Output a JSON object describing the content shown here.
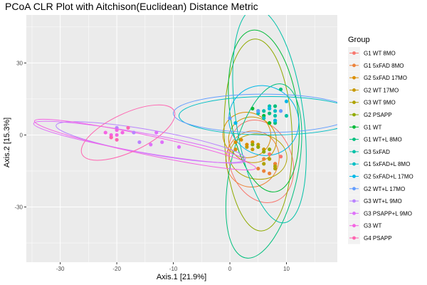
{
  "chart_data": {
    "type": "scatter",
    "title": "PCoA CLR Plot with Aitchison(Euclidean) Distance Metric",
    "xlabel": "Axis.1   [21.9%]",
    "ylabel": "Axis.2   [15.3%]",
    "xlim": [
      -36,
      19
    ],
    "ylim": [
      -53,
      50
    ],
    "x_ticks": [
      -30,
      -20,
      -10,
      0,
      10
    ],
    "x_tick_labels": [
      "-30",
      "-20",
      "-10",
      "0",
      "10"
    ],
    "y_ticks": [
      -30,
      0,
      30
    ],
    "y_tick_labels": [
      "-30",
      "0",
      "30"
    ],
    "grid": true,
    "panel_background": "#ebebeb",
    "legend_title": "Group",
    "legend_position": "right",
    "series": [
      {
        "name": "G1 WT 8MO",
        "color": "#F8766D",
        "points": [
          [
            9,
            -9
          ],
          [
            8,
            -12
          ],
          [
            7,
            -8
          ]
        ],
        "ellipse": {
          "cx": 5.5,
          "cy": -11,
          "rx": 7.5,
          "ry": 13,
          "angle": -70
        }
      },
      {
        "name": "G1 5xFAD 8MO",
        "color": "#EC8239",
        "points": [
          [
            6,
            -15
          ],
          [
            7,
            -16
          ],
          [
            8,
            -12
          ],
          [
            5,
            -14
          ],
          [
            6,
            -10
          ]
        ],
        "ellipse": {
          "cx": 4,
          "cy": -10,
          "rx": 5,
          "ry": 11,
          "angle": 70
        }
      },
      {
        "name": "G2 5xFAD 17MO",
        "color": "#DB8E00",
        "points": [
          [
            1,
            -3
          ],
          [
            2,
            -2
          ],
          [
            3,
            -4
          ],
          [
            4,
            -3
          ],
          [
            5,
            -5
          ],
          [
            1,
            -6
          ]
        ],
        "ellipse": {
          "cx": 3,
          "cy": 0,
          "rx": 4,
          "ry": 10,
          "angle": 80
        }
      },
      {
        "name": "G2 WT 17MO",
        "color": "#C79800",
        "points": [
          [
            3,
            -5
          ],
          [
            4,
            -6
          ],
          [
            5,
            -4
          ],
          [
            6,
            -6
          ]
        ],
        "ellipse": {
          "cx": 4,
          "cy": -2,
          "rx": 4,
          "ry": 10,
          "angle": 70
        }
      },
      {
        "name": "G3 WT 9MO",
        "color": "#AEA200",
        "points": [
          [
            6,
            -12
          ],
          [
            8,
            -14
          ],
          [
            7,
            -10
          ],
          [
            8,
            -13
          ]
        ],
        "ellipse": {
          "cx": 5,
          "cy": -9,
          "rx": 4,
          "ry": 12,
          "angle": 85
        }
      },
      {
        "name": "G2 PSAPP",
        "color": "#8FAA00",
        "points": [
          [
            5,
            -5
          ],
          [
            6,
            -7
          ],
          [
            7,
            -6
          ],
          [
            4,
            -4
          ]
        ],
        "ellipse": {
          "cx": 5,
          "cy": 0,
          "rx": 6,
          "ry": 40,
          "angle": 2
        }
      },
      {
        "name": "G1 WT",
        "color": "#00BA38",
        "points": [
          [
            5,
            10
          ],
          [
            7,
            5
          ],
          [
            6,
            8
          ],
          [
            8,
            6
          ],
          [
            4,
            11
          ]
        ],
        "ellipse": {
          "cx": 6,
          "cy": 10,
          "rx": 6,
          "ry": 34,
          "angle": 8
        }
      },
      {
        "name": "G1 WT+L 8MO",
        "color": "#00BF7D",
        "points": [
          [
            7,
            9
          ],
          [
            8,
            12
          ],
          [
            9,
            19
          ],
          [
            8,
            5
          ]
        ],
        "ellipse": {
          "cx": 6,
          "cy": -15,
          "rx": 6,
          "ry": 37,
          "angle": -12
        }
      },
      {
        "name": "G3 5xFAD",
        "color": "#00C1A7",
        "points": [
          [
            6,
            10
          ],
          [
            7,
            12
          ],
          [
            8,
            8
          ],
          [
            10,
            8
          ]
        ],
        "ellipse": {
          "cx": 7,
          "cy": 8,
          "rx": 6,
          "ry": 45,
          "angle": 8
        }
      },
      {
        "name": "G1 5xFAD+L 8MO",
        "color": "#00BFC4",
        "points": [
          [
            5,
            9
          ],
          [
            6,
            7
          ],
          [
            8,
            10
          ],
          [
            7,
            11
          ]
        ],
        "ellipse": {
          "cx": 7,
          "cy": 8,
          "rx": 16,
          "ry": 8,
          "angle": 0
        }
      },
      {
        "name": "G2 5xFAD+L 17MO",
        "color": "#00B8E7",
        "points": [
          [
            1,
            5
          ],
          [
            7,
            11
          ],
          [
            10,
            14
          ],
          [
            8,
            6
          ]
        ],
        "ellipse": {
          "cx": 6,
          "cy": 6,
          "rx": 6,
          "ry": 15,
          "angle": 45
        }
      },
      {
        "name": "G2 WT+L 17MO",
        "color": "#619CFF",
        "points": [
          [
            0,
            7
          ],
          [
            5,
            10
          ],
          [
            9,
            10
          ]
        ],
        "ellipse": {
          "cx": 6,
          "cy": 9,
          "rx": 16,
          "ry": 8,
          "angle": 0
        }
      },
      {
        "name": "G3 WT+L 9MO",
        "color": "#B983FF",
        "points": [
          [
            -17,
            1
          ],
          [
            -20,
            3
          ],
          [
            -16,
            -3
          ]
        ],
        "ellipse": {
          "cx": -14,
          "cy": -3,
          "rx": 17,
          "ry": 5,
          "angle": -10
        }
      },
      {
        "name": "G3 PSAPP+L 9MO",
        "color": "#DE71F9",
        "points": [
          [
            -13,
            1
          ],
          [
            -12,
            -3
          ],
          [
            -14,
            -4
          ],
          [
            -9,
            -5
          ]
        ],
        "ellipse": {
          "cx": -16,
          "cy": -3,
          "rx": 19,
          "ry": 4,
          "angle": -10
        }
      },
      {
        "name": "G3 WT",
        "color": "#F564E3",
        "points": [
          [
            -20,
            2
          ],
          [
            -21,
            0
          ],
          [
            -20,
            0
          ],
          [
            -22,
            1
          ],
          [
            -19,
            1
          ]
        ],
        "ellipse": {
          "cx": -15,
          "cy": -4,
          "rx": 20,
          "ry": 4,
          "angle": -12
        }
      },
      {
        "name": "G4 PSAPP",
        "color": "#FF64B0",
        "points": [
          [
            -21,
            -1
          ],
          [
            -18,
            3
          ],
          [
            -20,
            -2
          ],
          [
            -21,
            -1
          ]
        ],
        "ellipse": {
          "cx": -18,
          "cy": 1,
          "rx": 9,
          "ry": 8,
          "angle": 25
        }
      }
    ]
  }
}
